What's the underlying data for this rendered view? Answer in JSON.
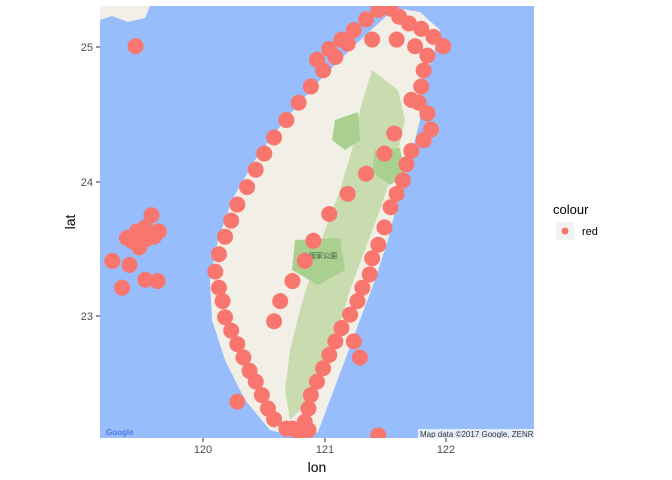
{
  "map": {
    "background_color": "#97bdfd",
    "land_color": "#f2f0e6",
    "forest_color": "#c8dcb0",
    "park_color": "#a9d08e",
    "point_color": "#f8766d",
    "google_logo": "Google",
    "attribution": "Map data ©2017 Google, ZENRIN",
    "park_label": "山國家公園"
  },
  "axes": {
    "xlabel": "lon",
    "ylabel": "lat",
    "x_ticks": [
      "120",
      "121",
      "122"
    ],
    "y_ticks": [
      "23",
      "24",
      "25"
    ]
  },
  "legend": {
    "title": "colour",
    "items": [
      {
        "label": "red",
        "color": "#f8766d"
      }
    ]
  },
  "chart_data": {
    "type": "scatter",
    "title": "",
    "xlabel": "lon",
    "ylabel": "lat",
    "xlim": [
      119.18,
      122.72
    ],
    "ylim": [
      22.08,
      25.3
    ],
    "x_ticks": [
      120,
      121,
      122
    ],
    "y_ticks": [
      23,
      24,
      25
    ],
    "grid": false,
    "legend_position": "right",
    "series": [
      {
        "name": "red",
        "color": "#f8766d",
        "points": [
          [
            119.47,
            25.0
          ],
          [
            119.28,
            23.4
          ],
          [
            119.42,
            23.37
          ],
          [
            119.36,
            23.2
          ],
          [
            119.55,
            23.26
          ],
          [
            119.65,
            23.25
          ],
          [
            119.4,
            23.57
          ],
          [
            119.48,
            23.62
          ],
          [
            119.55,
            23.65
          ],
          [
            119.6,
            23.74
          ],
          [
            119.62,
            23.58
          ],
          [
            119.5,
            23.5
          ],
          [
            119.44,
            23.55
          ],
          [
            119.55,
            23.56
          ],
          [
            119.66,
            23.62
          ],
          [
            121.45,
            25.27
          ],
          [
            121.55,
            25.28
          ],
          [
            121.62,
            25.22
          ],
          [
            121.7,
            25.17
          ],
          [
            121.8,
            25.13
          ],
          [
            121.9,
            25.07
          ],
          [
            121.98,
            25.0
          ],
          [
            121.35,
            25.2
          ],
          [
            121.25,
            25.12
          ],
          [
            121.15,
            25.05
          ],
          [
            121.05,
            24.98
          ],
          [
            120.95,
            24.9
          ],
          [
            121.4,
            25.05
          ],
          [
            121.6,
            25.05
          ],
          [
            121.75,
            25.0
          ],
          [
            121.85,
            24.93
          ],
          [
            121.82,
            24.82
          ],
          [
            121.8,
            24.7
          ],
          [
            121.78,
            24.58
          ],
          [
            121.85,
            24.5
          ],
          [
            121.88,
            24.38
          ],
          [
            121.82,
            24.3
          ],
          [
            121.72,
            24.22
          ],
          [
            121.68,
            24.12
          ],
          [
            121.65,
            24.0
          ],
          [
            121.6,
            23.9
          ],
          [
            121.55,
            23.8
          ],
          [
            121.5,
            23.65
          ],
          [
            121.45,
            23.52
          ],
          [
            121.4,
            23.42
          ],
          [
            121.38,
            23.3
          ],
          [
            121.32,
            23.2
          ],
          [
            121.28,
            23.1
          ],
          [
            121.22,
            23.0
          ],
          [
            121.15,
            22.9
          ],
          [
            121.1,
            22.8
          ],
          [
            121.05,
            22.7
          ],
          [
            121.0,
            22.6
          ],
          [
            120.95,
            22.5
          ],
          [
            120.9,
            22.4
          ],
          [
            120.88,
            22.3
          ],
          [
            120.85,
            22.2
          ],
          [
            120.8,
            22.12
          ],
          [
            120.7,
            22.15
          ],
          [
            120.6,
            22.22
          ],
          [
            120.55,
            22.3
          ],
          [
            120.5,
            22.4
          ],
          [
            120.45,
            22.5
          ],
          [
            120.4,
            22.58
          ],
          [
            120.35,
            22.68
          ],
          [
            120.3,
            22.78
          ],
          [
            120.25,
            22.88
          ],
          [
            120.2,
            22.98
          ],
          [
            120.18,
            23.1
          ],
          [
            120.15,
            23.2
          ],
          [
            120.12,
            23.32
          ],
          [
            120.15,
            23.45
          ],
          [
            120.2,
            23.58
          ],
          [
            120.25,
            23.7
          ],
          [
            120.3,
            23.82
          ],
          [
            120.38,
            23.95
          ],
          [
            120.45,
            24.08
          ],
          [
            120.52,
            24.2
          ],
          [
            120.6,
            24.32
          ],
          [
            120.7,
            24.45
          ],
          [
            120.8,
            24.58
          ],
          [
            120.9,
            24.7
          ],
          [
            121.0,
            24.82
          ],
          [
            121.1,
            24.92
          ],
          [
            121.2,
            25.02
          ],
          [
            120.3,
            22.35
          ],
          [
            120.75,
            22.15
          ],
          [
            120.88,
            22.14
          ],
          [
            121.45,
            22.1
          ],
          [
            121.3,
            22.68
          ],
          [
            121.25,
            22.8
          ],
          [
            121.58,
            24.35
          ],
          [
            121.72,
            24.6
          ],
          [
            121.5,
            24.2
          ],
          [
            121.35,
            24.05
          ],
          [
            121.2,
            23.9
          ],
          [
            121.05,
            23.75
          ],
          [
            120.92,
            23.55
          ],
          [
            120.85,
            23.4
          ],
          [
            120.75,
            23.25
          ],
          [
            120.65,
            23.1
          ],
          [
            120.6,
            22.95
          ]
        ]
      }
    ]
  }
}
